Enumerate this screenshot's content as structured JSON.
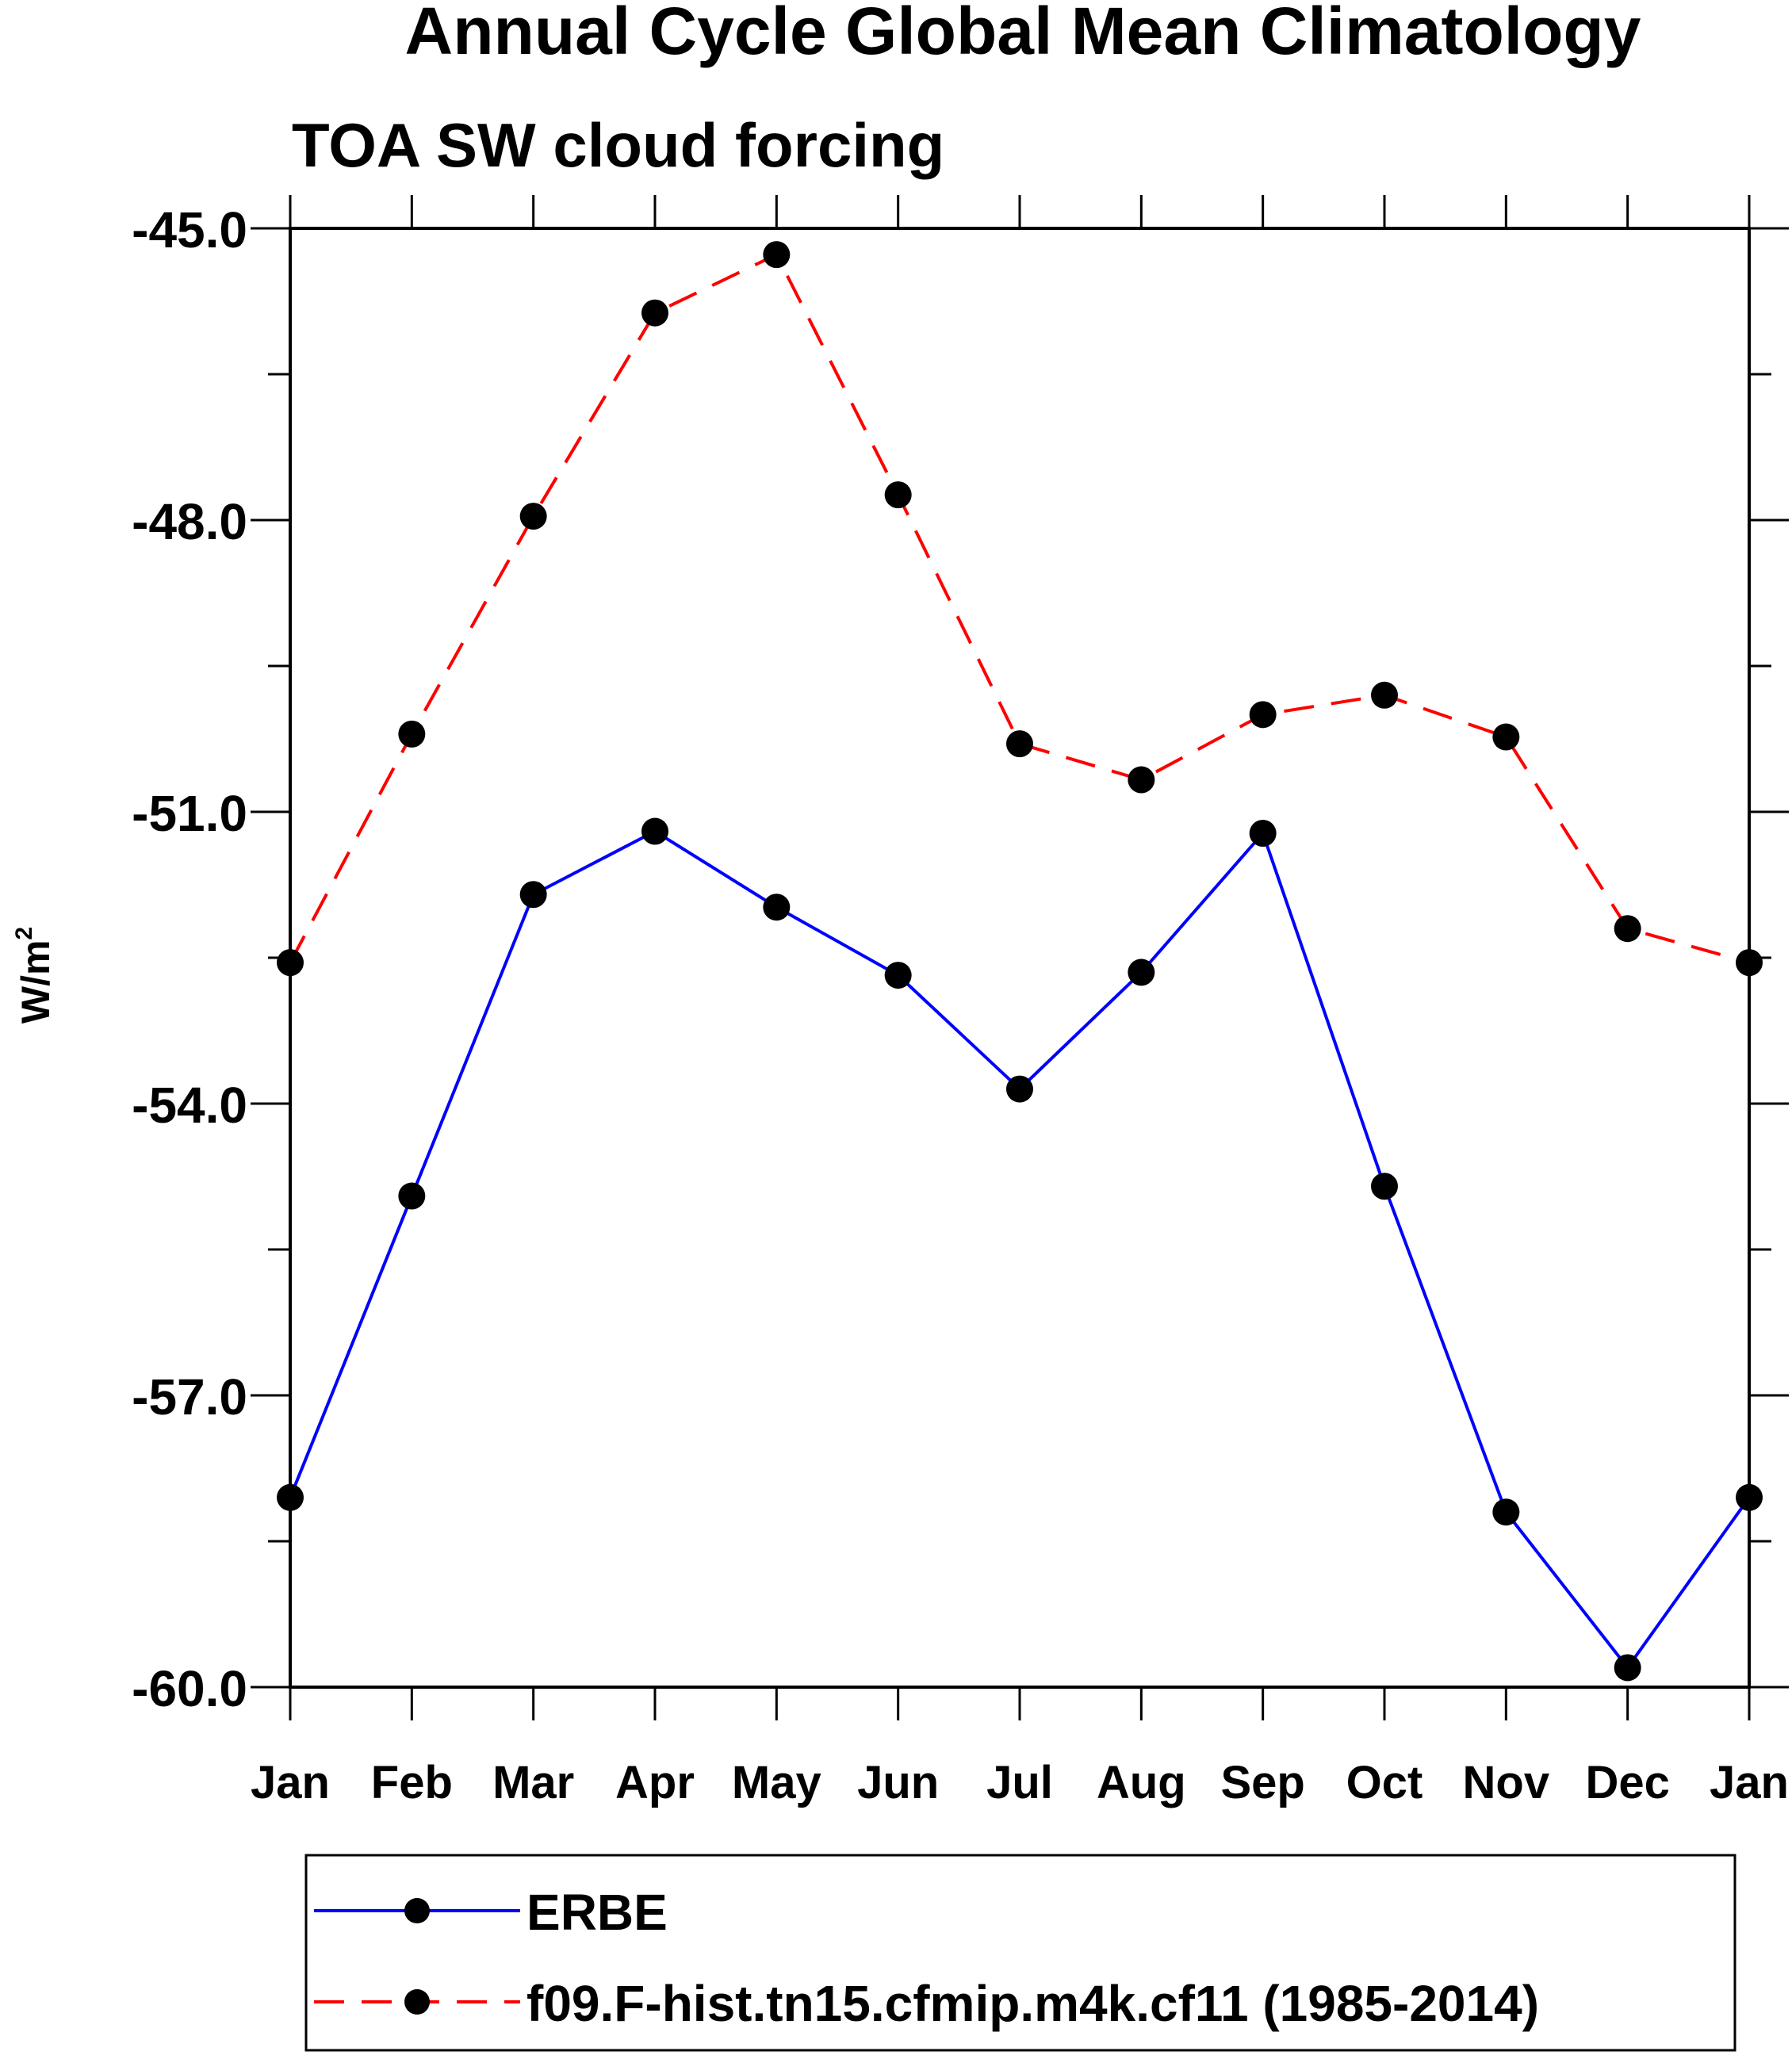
{
  "chart_data": {
    "type": "line",
    "title": "Annual Cycle Global Mean Climatology",
    "subtitle": "TOA SW cloud forcing",
    "xlabel": "",
    "ylabel": "W/m",
    "ylabel_superscript": "2",
    "categories": [
      "Jan",
      "Feb",
      "Mar",
      "Apr",
      "May",
      "Jun",
      "Jul",
      "Aug",
      "Sep",
      "Oct",
      "Nov",
      "Dec",
      "Jan"
    ],
    "ylim": [
      -60.0,
      -45.0
    ],
    "yticks": [
      "-45.0",
      "-48.0",
      "-51.0",
      "-54.0",
      "-57.0",
      "-60.0"
    ],
    "yticks_values": [
      -45.0,
      -48.0,
      -51.0,
      -54.0,
      -57.0,
      -60.0
    ],
    "series": [
      {
        "name": "ERBE",
        "color": "#0000ff",
        "dash": "solid",
        "values": [
          -58.05,
          -54.95,
          -51.85,
          -51.2,
          -51.98,
          -52.68,
          -53.85,
          -52.65,
          -51.22,
          -54.85,
          -58.2,
          -59.8,
          -58.05
        ]
      },
      {
        "name": "f09.F-hist.tn15.cfmip.m4k.cf11 (1985-2014)",
        "color": "#ff0000",
        "dash": "dashed",
        "values": [
          -52.55,
          -50.2,
          -47.96,
          -45.87,
          -45.27,
          -47.74,
          -50.3,
          -50.67,
          -50.0,
          -49.8,
          -50.23,
          -52.2,
          -52.55
        ]
      }
    ],
    "legend_position": "bottom"
  }
}
